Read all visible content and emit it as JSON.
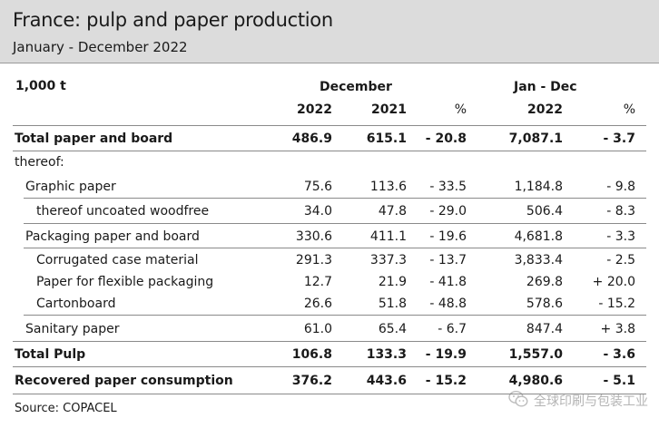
{
  "header": {
    "title": "France: pulp and paper production",
    "subtitle": "January - December 2022"
  },
  "table": {
    "unit": "1,000 t",
    "group_december": "December",
    "group_jandec": "Jan - Dec",
    "col_2022": "2022",
    "col_2021": "2021",
    "col_pct": "%",
    "col_jd_2022": "2022",
    "col_jd_pct": "%",
    "rows": [
      {
        "label": "Total paper and board",
        "v2022": "486.9",
        "v2021": "615.1",
        "pct": "- 20.8",
        "jd2022": "7,087.1",
        "jdpct": "- 3.7"
      },
      {
        "label": "thereof:",
        "v2022": "",
        "v2021": "",
        "pct": "",
        "jd2022": "",
        "jdpct": ""
      },
      {
        "label": "Graphic paper",
        "v2022": "75.6",
        "v2021": "113.6",
        "pct": "- 33.5",
        "jd2022": "1,184.8",
        "jdpct": "- 9.8"
      },
      {
        "label": "thereof uncoated woodfree",
        "v2022": "34.0",
        "v2021": "47.8",
        "pct": "- 29.0",
        "jd2022": "506.4",
        "jdpct": "- 8.3"
      },
      {
        "label": "Packaging paper and board",
        "v2022": "330.6",
        "v2021": "411.1",
        "pct": "- 19.6",
        "jd2022": "4,681.8",
        "jdpct": "- 3.3"
      },
      {
        "label": "Corrugated case material",
        "v2022": "291.3",
        "v2021": "337.3",
        "pct": "- 13.7",
        "jd2022": "3,833.4",
        "jdpct": "- 2.5"
      },
      {
        "label": "Paper for flexible packaging",
        "v2022": "12.7",
        "v2021": "21.9",
        "pct": "- 41.8",
        "jd2022": "269.8",
        "jdpct": "+ 20.0"
      },
      {
        "label": "Cartonboard",
        "v2022": "26.6",
        "v2021": "51.8",
        "pct": "- 48.8",
        "jd2022": "578.6",
        "jdpct": "- 15.2"
      },
      {
        "label": "Sanitary paper",
        "v2022": "61.0",
        "v2021": "65.4",
        "pct": "- 6.7",
        "jd2022": "847.4",
        "jdpct": "+ 3.8"
      },
      {
        "label": "Total Pulp",
        "v2022": "106.8",
        "v2021": "133.3",
        "pct": "- 19.9",
        "jd2022": "1,557.0",
        "jdpct": "- 3.6"
      },
      {
        "label": "Recovered paper consumption",
        "v2022": "376.2",
        "v2021": "443.6",
        "pct": "- 15.2",
        "jd2022": "4,980.6",
        "jdpct": "- 5.1"
      }
    ]
  },
  "footer": {
    "source": "Source: COPACEL",
    "watermark": "全球印刷与包装工业",
    "watermark_icon": "wechat-icon"
  }
}
